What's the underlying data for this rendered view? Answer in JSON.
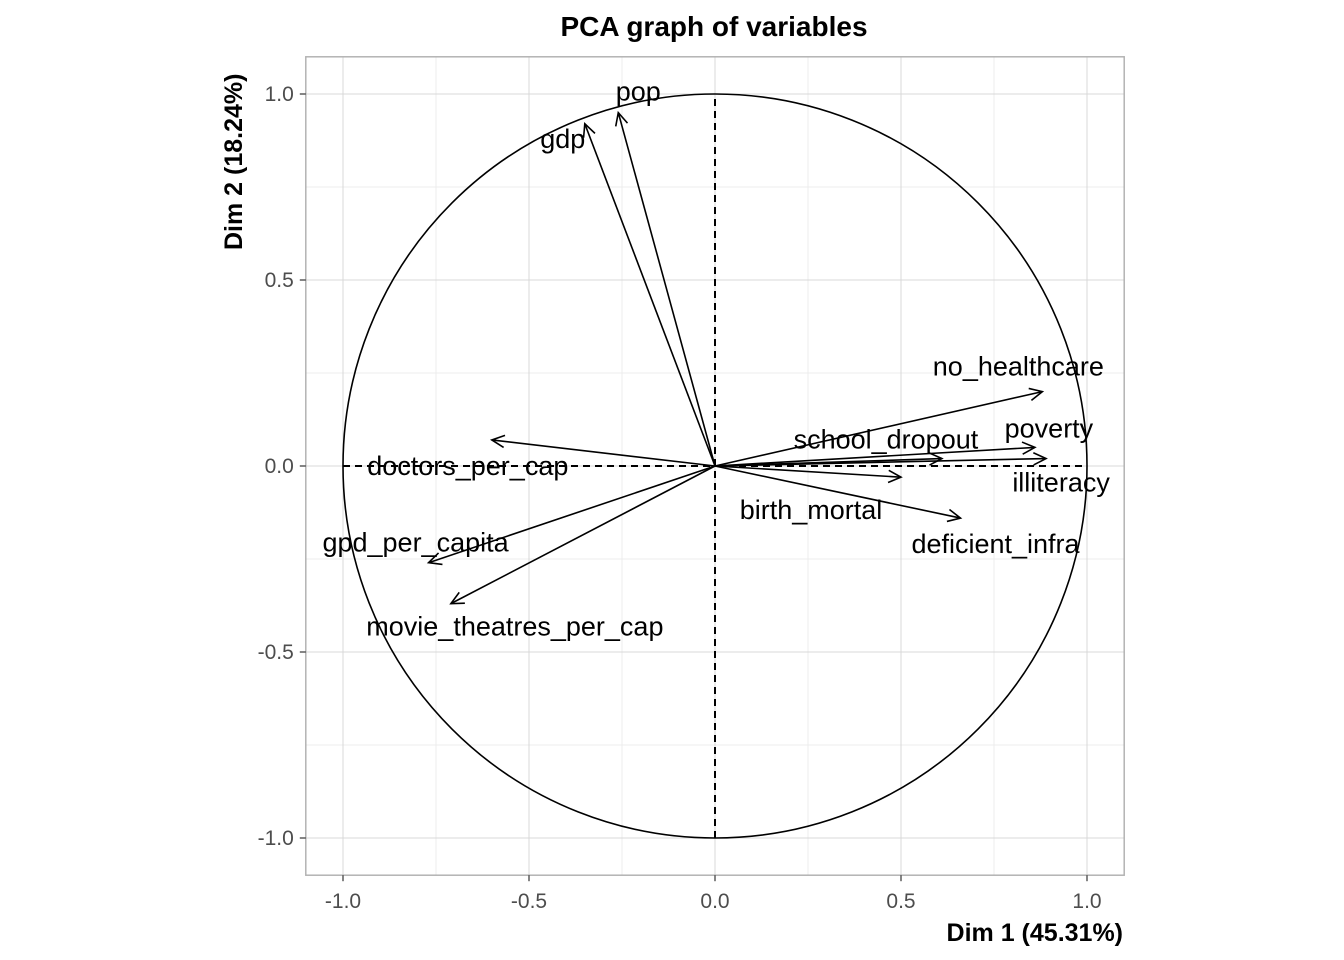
{
  "chart_data": {
    "type": "scatter",
    "title": "PCA graph of variables",
    "xlabel": "Dim 1 (45.31%)",
    "ylabel": "Dim 2 (18.24%)",
    "xlim": [
      -1.1,
      1.1
    ],
    "ylim": [
      -1.1,
      1.1
    ],
    "x_ticks": [
      "-1.0",
      "-0.5",
      "0.0",
      "0.5",
      "1.0"
    ],
    "y_ticks": [
      "1.0",
      "0.5",
      "0.0",
      "-0.5",
      "-1.0"
    ],
    "grid": true,
    "unit_circle": true,
    "variables": [
      {
        "name": "pop",
        "x": -0.26,
        "y": 0.95
      },
      {
        "name": "gdp",
        "x": -0.35,
        "y": 0.92
      },
      {
        "name": "no_healthcare",
        "x": 0.88,
        "y": 0.2
      },
      {
        "name": "poverty",
        "x": 0.86,
        "y": 0.05
      },
      {
        "name": "illiteracy",
        "x": 0.89,
        "y": 0.02
      },
      {
        "name": "school_dropout",
        "x": 0.61,
        "y": 0.02
      },
      {
        "name": "birth_mortal",
        "x": 0.5,
        "y": -0.03
      },
      {
        "name": "deficient_infra",
        "x": 0.66,
        "y": -0.14
      },
      {
        "name": "doctors_per_cap",
        "x": -0.6,
        "y": 0.07
      },
      {
        "name": "gpd_per_capita",
        "x": -0.77,
        "y": -0.26
      },
      {
        "name": "movie_theatres_per_cap",
        "x": -0.71,
        "y": -0.37
      }
    ]
  }
}
